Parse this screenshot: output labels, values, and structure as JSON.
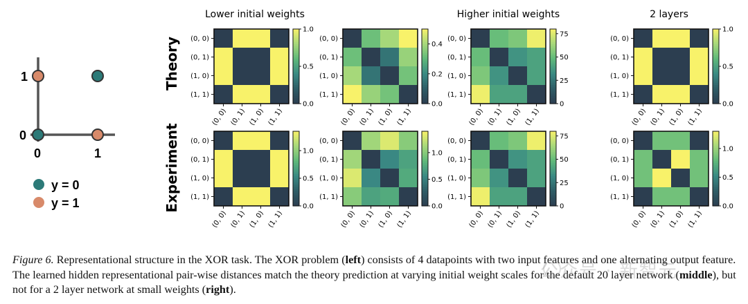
{
  "colors": {
    "cmap": [
      "#2c3e50",
      "#2e5d66",
      "#3a8a84",
      "#5fb97a",
      "#a6d87a",
      "#f8f26a"
    ],
    "teal_point": "#2c7a78",
    "orange_point": "#d88a6a",
    "axis": "#555555",
    "point_stroke": "#333333"
  },
  "xor": {
    "tick_1": "1",
    "tick_0_y": "0",
    "tick_0_x": "0",
    "tick_1_x": "1",
    "legend": [
      {
        "label": "y = 0",
        "color": "#2c7a78"
      },
      {
        "label": "y = 1",
        "color": "#d88a6a"
      }
    ]
  },
  "column_titles": [
    "Lower initial weights",
    "Higher initial weights",
    "2 layers"
  ],
  "row_labels": [
    "Theory",
    "Experiment"
  ],
  "tick_labels": [
    "(0, 0)",
    "(0, 1)",
    "(1, 0)",
    "(1, 1)"
  ],
  "chart_data": [
    {
      "type": "heatmap",
      "panel": "theory-1",
      "vmax": 1.0,
      "cbar_ticks": [
        0.0,
        0.5,
        1.0
      ],
      "cbar_labels": [
        "0.0",
        "0.5",
        "1.0"
      ],
      "values": [
        [
          0.0,
          1.0,
          1.0,
          0.0
        ],
        [
          1.0,
          0.0,
          0.0,
          1.0
        ],
        [
          1.0,
          0.0,
          0.0,
          1.0
        ],
        [
          0.0,
          1.0,
          1.0,
          0.0
        ]
      ]
    },
    {
      "type": "heatmap",
      "panel": "theory-2",
      "vmax": 0.5,
      "cbar_ticks": [
        0.0,
        0.2,
        0.4
      ],
      "cbar_labels": [
        "0.0",
        "0.2",
        "0.4"
      ],
      "values": [
        [
          0.0,
          0.32,
          0.4,
          0.5
        ],
        [
          0.32,
          0.0,
          0.15,
          0.38
        ],
        [
          0.4,
          0.15,
          0.0,
          0.33
        ],
        [
          0.5,
          0.38,
          0.33,
          0.0
        ]
      ]
    },
    {
      "type": "heatmap",
      "panel": "theory-3",
      "vmax": 80,
      "cbar_ticks": [
        0,
        25,
        50,
        75
      ],
      "cbar_labels": [
        "0",
        "25",
        "50",
        "75"
      ],
      "values": [
        [
          0,
          50,
          55,
          78
        ],
        [
          50,
          0,
          35,
          40
        ],
        [
          55,
          35,
          0,
          40
        ],
        [
          78,
          40,
          40,
          0
        ]
      ]
    },
    {
      "type": "heatmap",
      "panel": "theory-4",
      "vmax": 1.0,
      "cbar_ticks": [
        0.0,
        0.5,
        1.0
      ],
      "cbar_labels": [
        "0.0",
        "0.5",
        "1.0"
      ],
      "values": [
        [
          0.0,
          1.0,
          1.0,
          0.0
        ],
        [
          1.0,
          0.0,
          0.0,
          1.0
        ],
        [
          1.0,
          0.0,
          0.0,
          1.0
        ],
        [
          0.0,
          1.0,
          1.0,
          0.0
        ]
      ]
    },
    {
      "type": "heatmap",
      "panel": "experiment-1",
      "vmax": 1.35,
      "cbar_ticks": [
        0.0,
        0.5,
        1.0
      ],
      "cbar_labels": [
        "0.0",
        "0.5",
        "1.0"
      ],
      "values": [
        [
          0.0,
          1.35,
          1.35,
          0.0
        ],
        [
          1.35,
          0.0,
          0.0,
          1.35
        ],
        [
          1.35,
          0.0,
          0.0,
          1.35
        ],
        [
          0.0,
          1.35,
          1.35,
          0.0
        ]
      ]
    },
    {
      "type": "heatmap",
      "panel": "experiment-2",
      "vmax": 1.4,
      "cbar_ticks": [
        0.0,
        0.5,
        1.0
      ],
      "cbar_labels": [
        "0.0",
        "0.5",
        "1.0"
      ],
      "values": [
        [
          0.0,
          1.1,
          1.3,
          1.0
        ],
        [
          1.1,
          0.0,
          0.55,
          0.7
        ],
        [
          1.3,
          0.55,
          0.0,
          0.75
        ],
        [
          1.0,
          0.7,
          0.75,
          0.0
        ]
      ]
    },
    {
      "type": "heatmap",
      "panel": "experiment-3",
      "vmax": 80,
      "cbar_ticks": [
        0,
        25,
        50,
        75
      ],
      "cbar_labels": [
        "0",
        "25",
        "50",
        "75"
      ],
      "values": [
        [
          0,
          50,
          55,
          78
        ],
        [
          50,
          0,
          35,
          40
        ],
        [
          55,
          35,
          0,
          40
        ],
        [
          78,
          40,
          40,
          0
        ]
      ]
    },
    {
      "type": "heatmap",
      "panel": "experiment-4",
      "vmax": 1.3,
      "cbar_ticks": [
        0.0,
        0.5,
        1.0
      ],
      "cbar_labels": [
        "0.0",
        "0.5",
        "1.0"
      ],
      "values": [
        [
          0.0,
          0.85,
          0.85,
          0.0
        ],
        [
          0.85,
          0.0,
          1.3,
          0.85
        ],
        [
          0.85,
          1.3,
          0.0,
          0.85
        ],
        [
          0.0,
          0.85,
          0.85,
          0.0
        ]
      ]
    }
  ],
  "caption": {
    "fig_label": "Figure 6.",
    "t1": " Representational structure in the XOR task. The XOR problem (",
    "b1": "left",
    "t2": ") consists of 4 datapoints with two input features and one alternating output feature. The learned hidden representational pair-wise distances match the theory prediction at varying initial weight scales for the default 20 layer network (",
    "b2": "middle",
    "t3": "), but not for a 2 layer network at small weights (",
    "b3": "right",
    "t4": ")."
  },
  "watermark": "公众号 · 新智元"
}
